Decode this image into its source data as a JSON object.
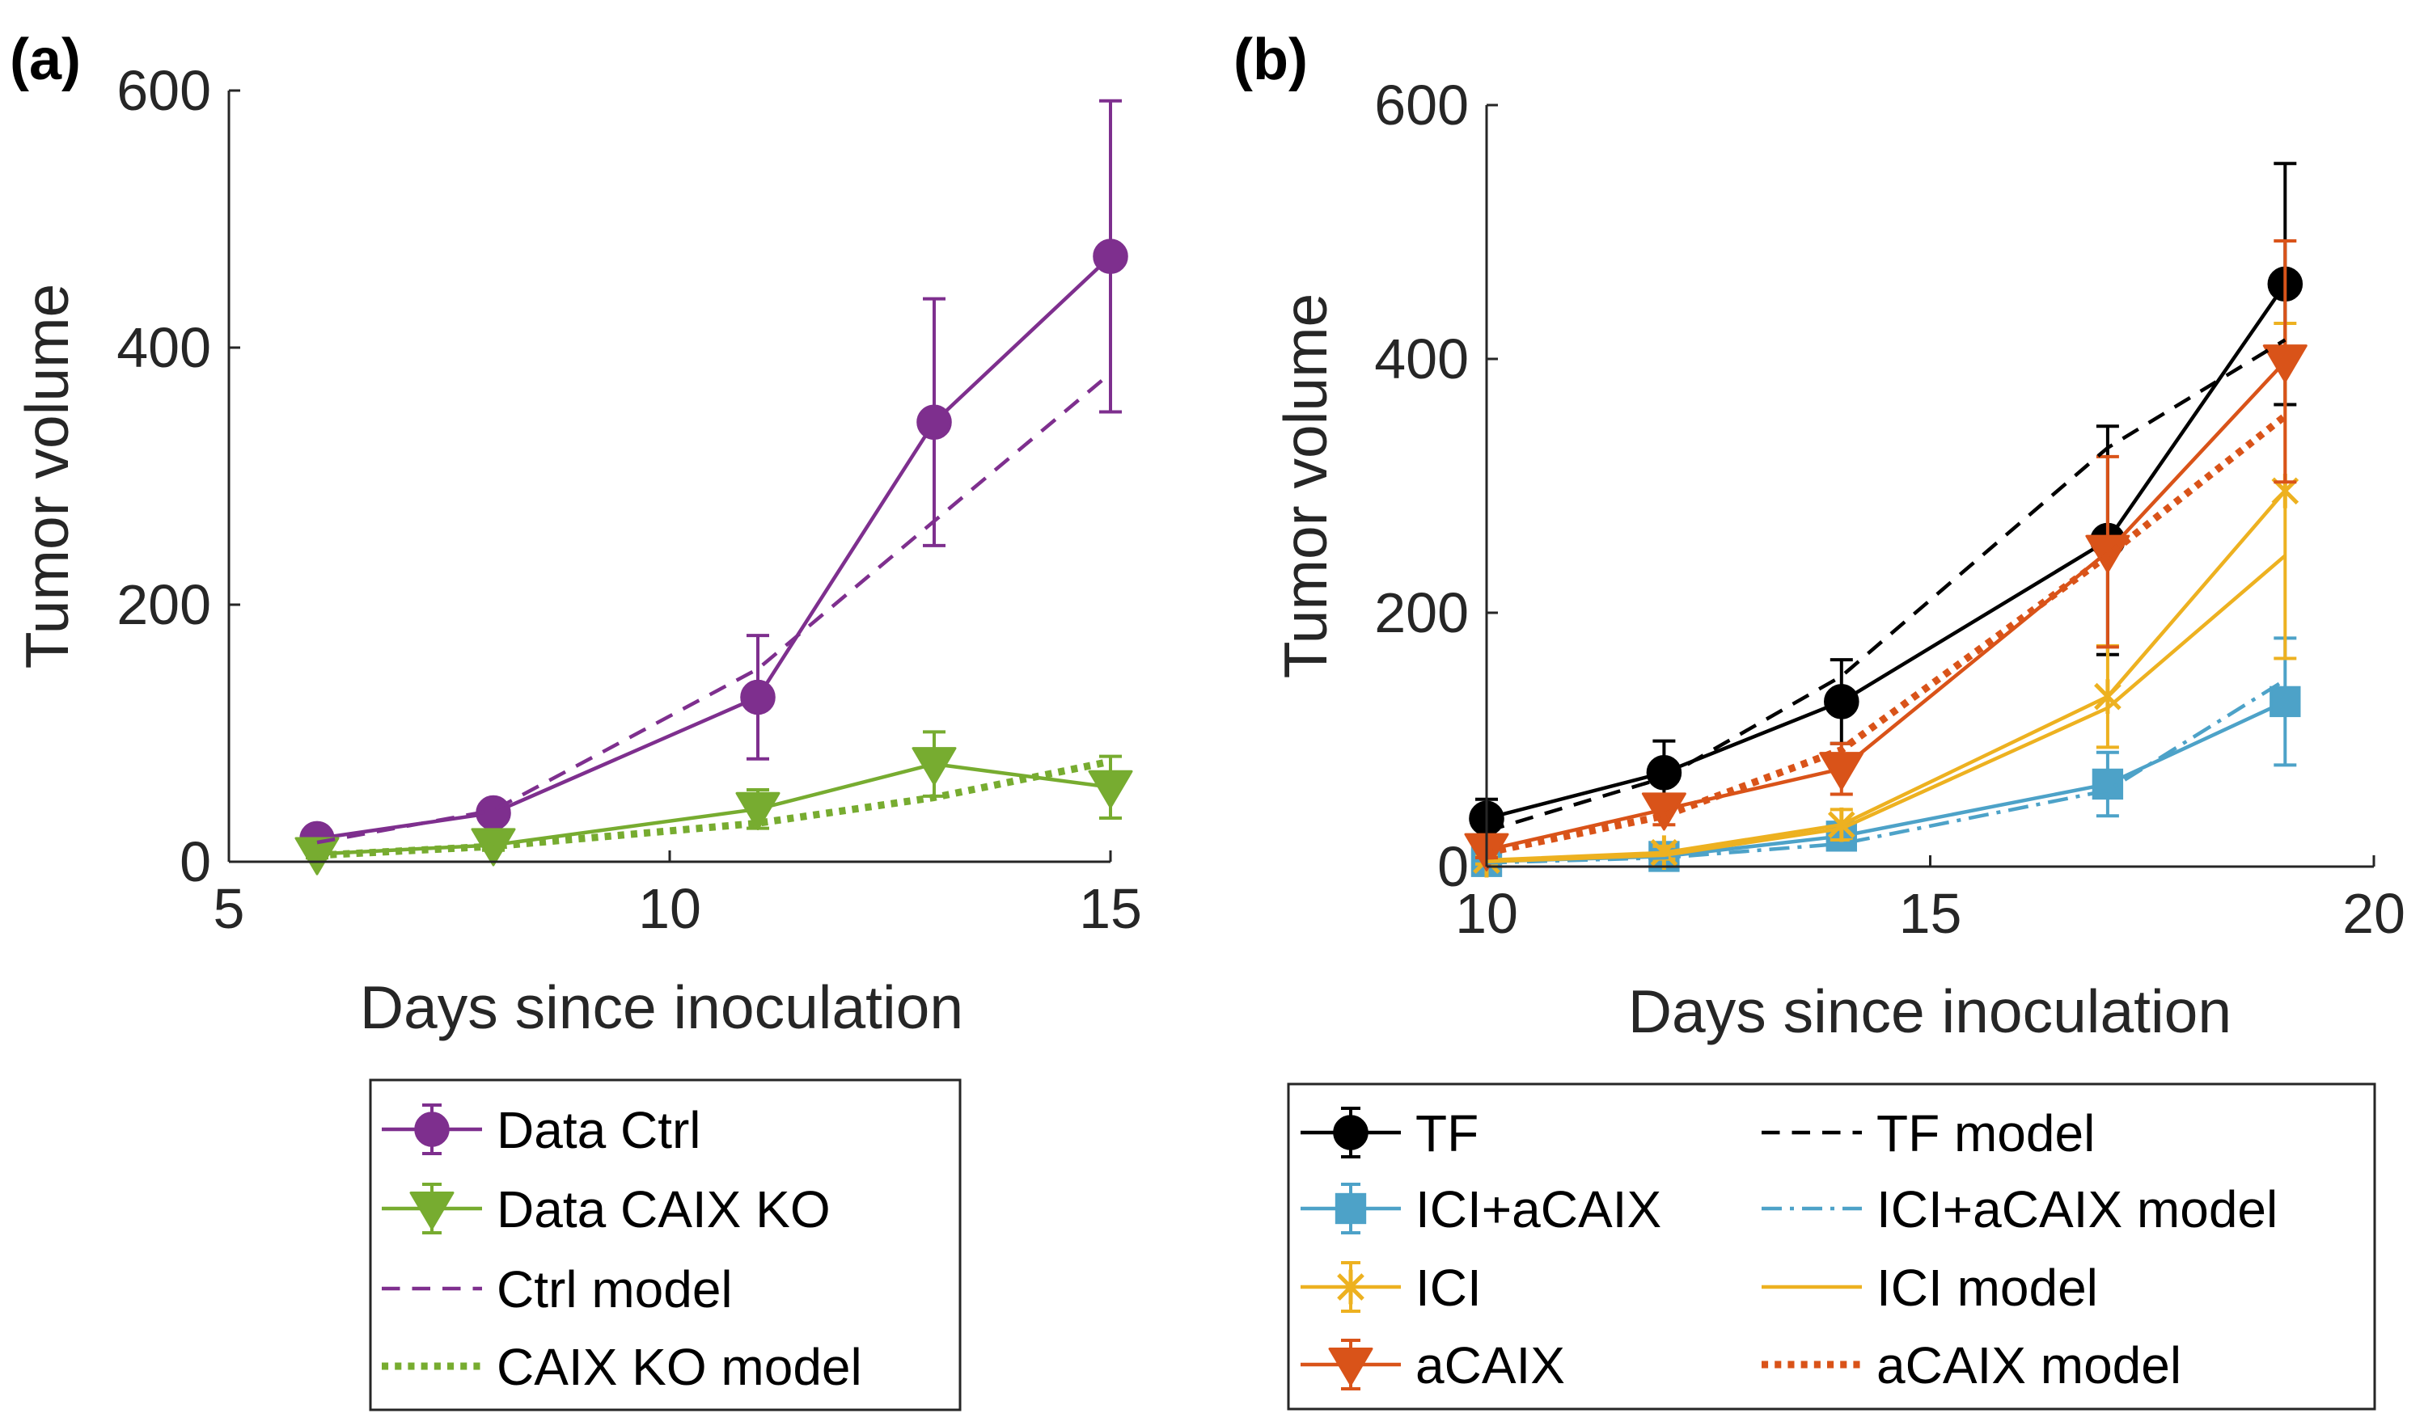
{
  "chart_data": [
    {
      "panel_label": "(a)",
      "type": "line",
      "xlabel": "Days since inoculation",
      "ylabel": "Tumor volume",
      "xlim": [
        5,
        15
      ],
      "ylim": [
        0,
        600
      ],
      "xticks": [
        5,
        10,
        15
      ],
      "yticks": [
        0,
        200,
        400,
        600
      ],
      "grid": false,
      "legend_position": "bottom-outside",
      "legend_columns": 1,
      "series": [
        {
          "name": "Data Ctrl",
          "kind": "data",
          "color": "#7E2F8E",
          "marker": "circle",
          "line": "solid",
          "x": [
            6,
            8,
            11,
            13,
            15
          ],
          "y": [
            18,
            38,
            128,
            342,
            471
          ],
          "err": [
            5,
            5,
            48,
            96,
            121
          ]
        },
        {
          "name": "Data CAIX KO",
          "kind": "data",
          "color": "#77AC30",
          "marker": "triangle-down",
          "line": "solid",
          "x": [
            6,
            8,
            11,
            13,
            15
          ],
          "y": [
            6,
            13,
            41,
            76,
            58
          ],
          "err": [
            3,
            4,
            15,
            25,
            24
          ]
        },
        {
          "name": "Ctrl model",
          "kind": "model",
          "color": "#7E2F8E",
          "line": "dashed",
          "x": [
            6,
            8,
            11,
            13,
            15
          ],
          "y": [
            15,
            40,
            150,
            265,
            380
          ]
        },
        {
          "name": "CAIX KO model",
          "kind": "model",
          "color": "#77AC30",
          "line": "dotted",
          "x": [
            6,
            8,
            11,
            13,
            15
          ],
          "y": [
            5,
            12,
            30,
            50,
            78
          ]
        }
      ]
    },
    {
      "panel_label": "(b)",
      "type": "line",
      "xlabel": "Days since inoculation",
      "ylabel": "Tumor volume",
      "xlim": [
        10,
        20
      ],
      "ylim": [
        0,
        600
      ],
      "xticks": [
        10,
        15,
        20
      ],
      "yticks": [
        0,
        200,
        400,
        600
      ],
      "grid": false,
      "legend_position": "bottom-outside",
      "legend_columns": 2,
      "series": [
        {
          "name": "TF",
          "kind": "data",
          "color": "#000000",
          "marker": "circle",
          "line": "solid",
          "x": [
            10,
            12,
            14,
            17,
            19
          ],
          "y": [
            38,
            74,
            130,
            257,
            459
          ],
          "err": [
            15,
            25,
            33,
            90,
            95
          ]
        },
        {
          "name": "TF model",
          "kind": "model",
          "color": "#000000",
          "line": "dashed",
          "x": [
            10,
            12,
            14,
            17,
            19
          ],
          "y": [
            28,
            70,
            150,
            330,
            415
          ]
        },
        {
          "name": "ICI+aCAIX",
          "kind": "data",
          "color": "#4DA2C8",
          "marker": "square",
          "line": "solid",
          "x": [
            10,
            12,
            14,
            17,
            19
          ],
          "y": [
            4,
            8,
            24,
            65,
            130
          ],
          "err": [
            3,
            4,
            8,
            25,
            50
          ]
        },
        {
          "name": "ICI+aCAIX model",
          "kind": "model",
          "color": "#4DA2C8",
          "line": "dashdot",
          "x": [
            10,
            12,
            14,
            17,
            19
          ],
          "y": [
            3,
            7,
            18,
            60,
            147
          ]
        },
        {
          "name": "ICI",
          "kind": "data",
          "color": "#EDB120",
          "marker": "star",
          "line": "solid",
          "x": [
            10,
            12,
            14,
            17,
            19
          ],
          "y": [
            5,
            11,
            33,
            134,
            296
          ],
          "err": [
            3,
            5,
            12,
            40,
            132
          ]
        },
        {
          "name": "ICI model",
          "kind": "model",
          "color": "#EDB120",
          "line": "solid",
          "x": [
            10,
            12,
            14,
            17,
            19
          ],
          "y": [
            4,
            9,
            30,
            125,
            245
          ]
        },
        {
          "name": "aCAIX",
          "kind": "data",
          "color": "#D95319",
          "marker": "triangle-down",
          "line": "solid",
          "x": [
            10,
            12,
            14,
            17,
            19
          ],
          "y": [
            13,
            45,
            77,
            248,
            398
          ],
          "err": [
            6,
            12,
            20,
            75,
            95
          ]
        },
        {
          "name": "aCAIX model",
          "kind": "model",
          "color": "#D95319",
          "line": "dotted",
          "x": [
            10,
            12,
            14,
            17,
            19
          ],
          "y": [
            11,
            40,
            92,
            245,
            355
          ]
        }
      ]
    }
  ]
}
